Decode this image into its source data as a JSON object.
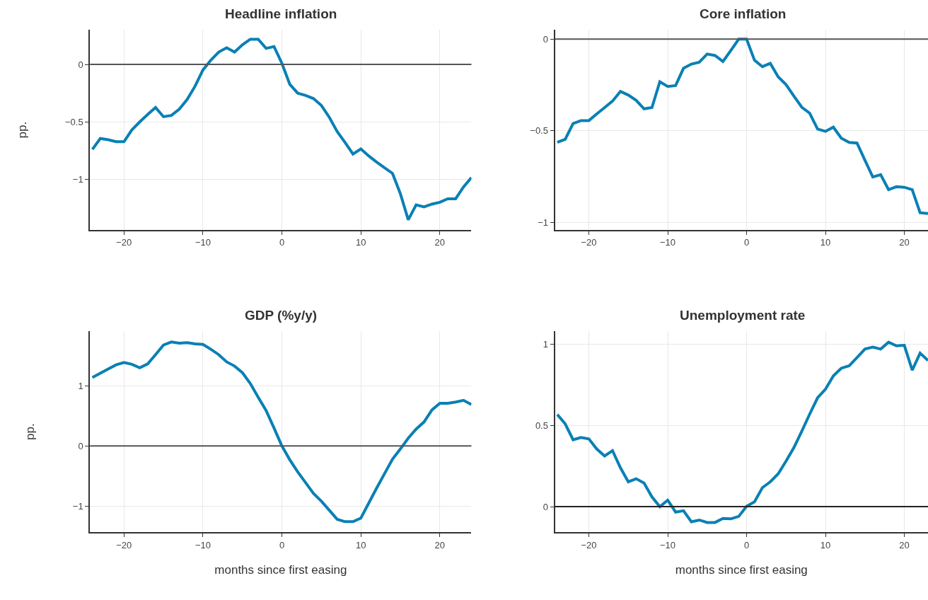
{
  "chart_data": [
    {
      "type": "line",
      "title": "Headline inflation",
      "ylabel": "pp.",
      "x": [
        -24,
        -23,
        -22,
        -21,
        -20,
        -19,
        -18,
        -17,
        -16,
        -15,
        -14,
        -13,
        -12,
        -11,
        -10,
        -9,
        -8,
        -7,
        -6,
        -5,
        -4,
        -3,
        -2,
        -1,
        0,
        1,
        2,
        3,
        4,
        5,
        6,
        7,
        8,
        9,
        10,
        11,
        12,
        13,
        14,
        15,
        16,
        17,
        18,
        19,
        20,
        21,
        22,
        23,
        24
      ],
      "series": [
        {
          "color": "#0a80b5",
          "values": [
            -0.74,
            -0.645,
            -0.656,
            -0.673,
            -0.673,
            -0.57,
            -0.5,
            -0.435,
            -0.375,
            -0.455,
            -0.444,
            -0.39,
            -0.305,
            -0.19,
            -0.048,
            0.037,
            0.108,
            0.145,
            0.108,
            0.171,
            0.22,
            0.22,
            0.14,
            0.156,
            0.01,
            -0.173,
            -0.25,
            -0.27,
            -0.297,
            -0.357,
            -0.46,
            -0.585,
            -0.68,
            -0.78,
            -0.736,
            -0.797,
            -0.85,
            -0.9,
            -0.948,
            -1.125,
            -1.353,
            -1.223,
            -1.24,
            -1.216,
            -1.2,
            -1.17,
            -1.17,
            -1.067,
            -0.985
          ]
        }
      ],
      "xlim": [
        -24.3,
        24
      ],
      "ylim": [
        -1.44,
        0.3
      ],
      "xticks": [
        -20,
        -10,
        0,
        10,
        20
      ],
      "yticks": [
        -1,
        -0.5,
        0
      ],
      "grid": true,
      "line_style": "solid",
      "ref_lines": [
        {
          "axis": "y",
          "value": 0,
          "color": "#555555"
        }
      ]
    },
    {
      "type": "line",
      "title": "Core inflation",
      "x": [
        -24,
        -23,
        -22,
        -21,
        -20,
        -19,
        -18,
        -17,
        -16,
        -15,
        -14,
        -13,
        -12,
        -11,
        -10,
        -9,
        -8,
        -7,
        -6,
        -5,
        -4,
        -3,
        -2,
        -1,
        0,
        1,
        2,
        3,
        4,
        5,
        6,
        7,
        8,
        9,
        10,
        11,
        12,
        13,
        14,
        15,
        16,
        17,
        18,
        19,
        20,
        21,
        22,
        23
      ],
      "series": [
        {
          "color": "#0a80b5",
          "values": [
            -0.563,
            -0.546,
            -0.46,
            -0.444,
            -0.444,
            -0.408,
            -0.373,
            -0.338,
            -0.285,
            -0.305,
            -0.334,
            -0.38,
            -0.373,
            -0.232,
            -0.258,
            -0.253,
            -0.159,
            -0.136,
            -0.126,
            -0.081,
            -0.089,
            -0.122,
            -0.062,
            0,
            0,
            -0.115,
            -0.15,
            -0.132,
            -0.205,
            -0.248,
            -0.311,
            -0.371,
            -0.404,
            -0.49,
            -0.503,
            -0.48,
            -0.54,
            -0.563,
            -0.567,
            -0.66,
            -0.752,
            -0.739,
            -0.821,
            -0.805,
            -0.808,
            -0.821,
            -0.947,
            -0.951
          ]
        }
      ],
      "xlim": [
        -24.3,
        23
      ],
      "ylim": [
        -1.04,
        0.05
      ],
      "xticks": [
        -20,
        -10,
        0,
        10,
        20
      ],
      "yticks": [
        -1,
        -0.5,
        0
      ],
      "grid": true,
      "line_style": "solid",
      "ref_lines": [
        {
          "axis": "y",
          "value": 0,
          "color": "#555555"
        }
      ]
    },
    {
      "type": "line",
      "title": "GDP (%y/y)",
      "ylabel": "pp.",
      "xlabel": "months since first easing",
      "x": [
        -24,
        -23,
        -22,
        -21,
        -20,
        -19,
        -18,
        -17,
        -16,
        -15,
        -14,
        -13,
        -12,
        -11,
        -10,
        -9,
        -8,
        -7,
        -6,
        -5,
        -4,
        -3,
        -2,
        -1,
        0,
        1,
        2,
        3,
        4,
        5,
        6,
        7,
        8,
        9,
        10,
        11,
        12,
        13,
        14,
        15,
        16,
        17,
        18,
        19,
        20,
        21,
        22,
        23,
        24
      ],
      "series": [
        {
          "color": "#0a80b5",
          "values": [
            1.14,
            1.21,
            1.28,
            1.35,
            1.39,
            1.36,
            1.3,
            1.365,
            1.52,
            1.68,
            1.73,
            1.71,
            1.72,
            1.7,
            1.69,
            1.61,
            1.52,
            1.4,
            1.33,
            1.22,
            1.04,
            0.81,
            0.59,
            0.3,
            0,
            -0.23,
            -0.43,
            -0.61,
            -0.79,
            -0.92,
            -1.07,
            -1.22,
            -1.26,
            -1.26,
            -1.2,
            -0.95,
            -0.7,
            -0.46,
            -0.22,
            -0.05,
            0.13,
            0.28,
            0.4,
            0.6,
            0.71,
            0.71,
            0.73,
            0.76,
            0.69
          ]
        }
      ],
      "xlim": [
        -24.3,
        24
      ],
      "ylim": [
        -1.435,
        1.91
      ],
      "xticks": [
        -20,
        -10,
        0,
        10,
        20
      ],
      "yticks": [
        -1,
        0,
        1
      ],
      "grid": true,
      "line_style": "solid",
      "ref_lines": [
        {
          "axis": "y",
          "value": 0,
          "color": "#555555"
        }
      ]
    },
    {
      "type": "line",
      "title": "Unemployment rate",
      "xlabel": "months since first easing",
      "x": [
        -24,
        -23,
        -22,
        -21,
        -20,
        -19,
        -18,
        -17,
        -16,
        -15,
        -14,
        -13,
        -12,
        -11,
        -10,
        -9,
        -8,
        -7,
        -6,
        -5,
        -4,
        -3,
        -2,
        -1,
        0,
        1,
        2,
        3,
        4,
        5,
        6,
        7,
        8,
        9,
        10,
        11,
        12,
        13,
        14,
        15,
        16,
        17,
        18,
        19,
        20,
        21,
        22,
        23
      ],
      "series": [
        {
          "color": "#0a80b5",
          "values": [
            0.567,
            0.51,
            0.412,
            0.426,
            0.417,
            0.355,
            0.312,
            0.345,
            0.24,
            0.153,
            0.172,
            0.145,
            0.06,
            0,
            0.04,
            -0.033,
            -0.025,
            -0.093,
            -0.082,
            -0.097,
            -0.097,
            -0.072,
            -0.075,
            -0.06,
            0.003,
            0.03,
            0.117,
            0.153,
            0.202,
            0.28,
            0.364,
            0.465,
            0.57,
            0.67,
            0.723,
            0.805,
            0.852,
            0.867,
            0.918,
            0.97,
            0.982,
            0.97,
            1.012,
            0.99,
            0.993,
            0.84,
            0.945,
            0.9
          ]
        }
      ],
      "xlim": [
        -24.3,
        23
      ],
      "ylim": [
        -0.157,
        1.08
      ],
      "xticks": [
        -20,
        -10,
        0,
        10,
        20
      ],
      "yticks": [
        0,
        0.5,
        1
      ],
      "grid": true,
      "line_style": "solid",
      "ref_lines": [
        {
          "axis": "y",
          "value": 0,
          "color": "#222222"
        }
      ]
    }
  ]
}
